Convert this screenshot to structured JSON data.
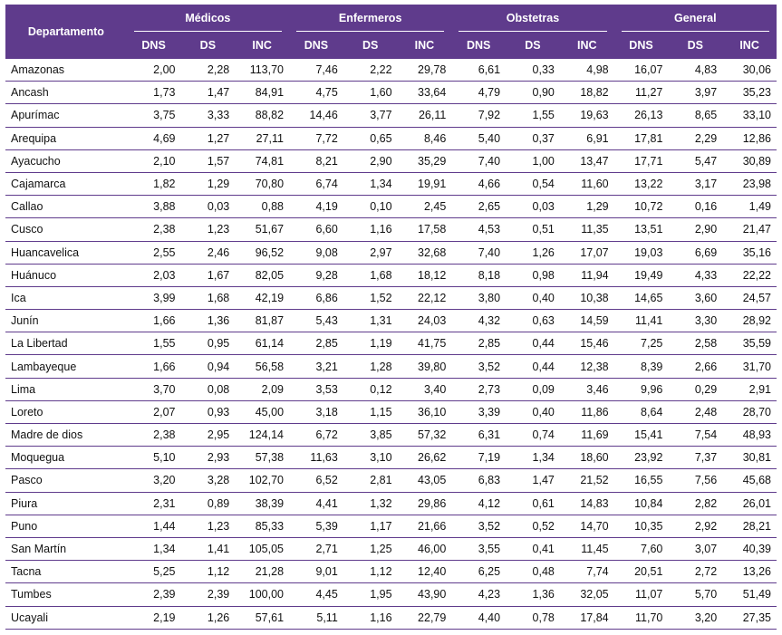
{
  "header": {
    "departamento": "Departamento",
    "groups": [
      "Médicos",
      "Enfermeros",
      "Obstetras",
      "General"
    ],
    "sub": [
      "DNS",
      "DS",
      "INC"
    ]
  },
  "rows": [
    {
      "dep": "Amazonas",
      "v": [
        "2,00",
        "2,28",
        "113,70",
        "7,46",
        "2,22",
        "29,78",
        "6,61",
        "0,33",
        "4,98",
        "16,07",
        "4,83",
        "30,06"
      ]
    },
    {
      "dep": "Ancash",
      "v": [
        "1,73",
        "1,47",
        "84,91",
        "4,75",
        "1,60",
        "33,64",
        "4,79",
        "0,90",
        "18,82",
        "11,27",
        "3,97",
        "35,23"
      ]
    },
    {
      "dep": "Apurímac",
      "v": [
        "3,75",
        "3,33",
        "88,82",
        "14,46",
        "3,77",
        "26,11",
        "7,92",
        "1,55",
        "19,63",
        "26,13",
        "8,65",
        "33,10"
      ]
    },
    {
      "dep": "Arequipa",
      "v": [
        "4,69",
        "1,27",
        "27,11",
        "7,72",
        "0,65",
        "8,46",
        "5,40",
        "0,37",
        "6,91",
        "17,81",
        "2,29",
        "12,86"
      ]
    },
    {
      "dep": "Ayacucho",
      "v": [
        "2,10",
        "1,57",
        "74,81",
        "8,21",
        "2,90",
        "35,29",
        "7,40",
        "1,00",
        "13,47",
        "17,71",
        "5,47",
        "30,89"
      ]
    },
    {
      "dep": "Cajamarca",
      "v": [
        "1,82",
        "1,29",
        "70,80",
        "6,74",
        "1,34",
        "19,91",
        "4,66",
        "0,54",
        "11,60",
        "13,22",
        "3,17",
        "23,98"
      ]
    },
    {
      "dep": "Callao",
      "v": [
        "3,88",
        "0,03",
        "0,88",
        "4,19",
        "0,10",
        "2,45",
        "2,65",
        "0,03",
        "1,29",
        "10,72",
        "0,16",
        "1,49"
      ]
    },
    {
      "dep": "Cusco",
      "v": [
        "2,38",
        "1,23",
        "51,67",
        "6,60",
        "1,16",
        "17,58",
        "4,53",
        "0,51",
        "11,35",
        "13,51",
        "2,90",
        "21,47"
      ]
    },
    {
      "dep": "Huancavelica",
      "v": [
        "2,55",
        "2,46",
        "96,52",
        "9,08",
        "2,97",
        "32,68",
        "7,40",
        "1,26",
        "17,07",
        "19,03",
        "6,69",
        "35,16"
      ]
    },
    {
      "dep": "Huánuco",
      "v": [
        "2,03",
        "1,67",
        "82,05",
        "9,28",
        "1,68",
        "18,12",
        "8,18",
        "0,98",
        "11,94",
        "19,49",
        "4,33",
        "22,22"
      ]
    },
    {
      "dep": "Ica",
      "v": [
        "3,99",
        "1,68",
        "42,19",
        "6,86",
        "1,52",
        "22,12",
        "3,80",
        "0,40",
        "10,38",
        "14,65",
        "3,60",
        "24,57"
      ]
    },
    {
      "dep": "Junín",
      "v": [
        "1,66",
        "1,36",
        "81,87",
        "5,43",
        "1,31",
        "24,03",
        "4,32",
        "0,63",
        "14,59",
        "11,41",
        "3,30",
        "28,92"
      ]
    },
    {
      "dep": "La Libertad",
      "v": [
        "1,55",
        "0,95",
        "61,14",
        "2,85",
        "1,19",
        "41,75",
        "2,85",
        "0,44",
        "15,46",
        "7,25",
        "2,58",
        "35,59"
      ]
    },
    {
      "dep": "Lambayeque",
      "v": [
        "1,66",
        "0,94",
        "56,58",
        "3,21",
        "1,28",
        "39,80",
        "3,52",
        "0,44",
        "12,38",
        "8,39",
        "2,66",
        "31,70"
      ]
    },
    {
      "dep": "Lima",
      "v": [
        "3,70",
        "0,08",
        "2,09",
        "3,53",
        "0,12",
        "3,40",
        "2,73",
        "0,09",
        "3,46",
        "9,96",
        "0,29",
        "2,91"
      ]
    },
    {
      "dep": "Loreto",
      "v": [
        "2,07",
        "0,93",
        "45,00",
        "3,18",
        "1,15",
        "36,10",
        "3,39",
        "0,40",
        "11,86",
        "8,64",
        "2,48",
        "28,70"
      ]
    },
    {
      "dep": "Madre de dios",
      "v": [
        "2,38",
        "2,95",
        "124,14",
        "6,72",
        "3,85",
        "57,32",
        "6,31",
        "0,74",
        "11,69",
        "15,41",
        "7,54",
        "48,93"
      ]
    },
    {
      "dep": "Moquegua",
      "v": [
        "5,10",
        "2,93",
        "57,38",
        "11,63",
        "3,10",
        "26,62",
        "7,19",
        "1,34",
        "18,60",
        "23,92",
        "7,37",
        "30,81"
      ]
    },
    {
      "dep": "Pasco",
      "v": [
        "3,20",
        "3,28",
        "102,70",
        "6,52",
        "2,81",
        "43,05",
        "6,83",
        "1,47",
        "21,52",
        "16,55",
        "7,56",
        "45,68"
      ]
    },
    {
      "dep": "Piura",
      "v": [
        "2,31",
        "0,89",
        "38,39",
        "4,41",
        "1,32",
        "29,86",
        "4,12",
        "0,61",
        "14,83",
        "10,84",
        "2,82",
        "26,01"
      ]
    },
    {
      "dep": "Puno",
      "v": [
        "1,44",
        "1,23",
        "85,33",
        "5,39",
        "1,17",
        "21,66",
        "3,52",
        "0,52",
        "14,70",
        "10,35",
        "2,92",
        "28,21"
      ]
    },
    {
      "dep": "San Martín",
      "v": [
        "1,34",
        "1,41",
        "105,05",
        "2,71",
        "1,25",
        "46,00",
        "3,55",
        "0,41",
        "11,45",
        "7,60",
        "3,07",
        "40,39"
      ]
    },
    {
      "dep": "Tacna",
      "v": [
        "5,25",
        "1,12",
        "21,28",
        "9,01",
        "1,12",
        "12,40",
        "6,25",
        "0,48",
        "7,74",
        "20,51",
        "2,72",
        "13,26"
      ]
    },
    {
      "dep": "Tumbes",
      "v": [
        "2,39",
        "2,39",
        "100,00",
        "4,45",
        "1,95",
        "43,90",
        "4,23",
        "1,36",
        "32,05",
        "11,07",
        "5,70",
        "51,49"
      ]
    },
    {
      "dep": "Ucayali",
      "v": [
        "2,19",
        "1,26",
        "57,61",
        "5,11",
        "1,16",
        "22,79",
        "4,40",
        "0,78",
        "17,84",
        "11,70",
        "3,20",
        "27,35"
      ]
    }
  ]
}
